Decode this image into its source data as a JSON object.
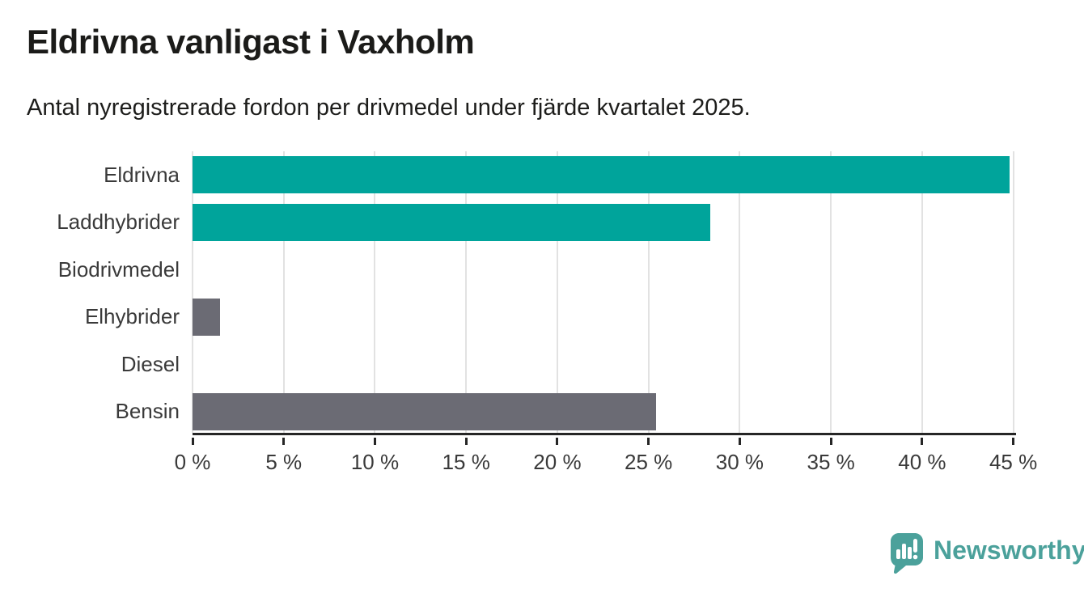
{
  "chart_data": {
    "type": "bar",
    "orientation": "horizontal",
    "title": "Eldrivna vanligast i Vaxholm",
    "subtitle": "Antal nyregistrerade fordon per drivmedel under fjärde kvartalet 2025.",
    "categories": [
      "Eldrivna",
      "Laddhybrider",
      "Biodrivmedel",
      "Elhybrider",
      "Diesel",
      "Bensin"
    ],
    "values": [
      44.8,
      28.4,
      0,
      1.5,
      0,
      25.4
    ],
    "unit": "%",
    "bar_colors": [
      "#00a49b",
      "#00a49b",
      "#00a49b",
      "#6b6b74",
      "#6b6b74",
      "#6b6b74"
    ],
    "xlim": [
      0,
      45.15
    ],
    "x_ticks": [
      0,
      5,
      10,
      15,
      20,
      25,
      30,
      35,
      40,
      45
    ],
    "x_tick_labels": [
      "0 %",
      "5 %",
      "10 %",
      "15 %",
      "20 %",
      "25 %",
      "30 %",
      "35 %",
      "40 %",
      "45 %"
    ],
    "xlabel": "",
    "ylabel": "",
    "grid": "vertical",
    "legend": "none",
    "colors": {
      "accent_teal": "#00a49b",
      "neutral_gray": "#6b6b74",
      "gridline": "#e2e2e2",
      "axis": "#262626",
      "text": "#1c1c1c"
    }
  },
  "branding": {
    "logo_text": "Newsworthy",
    "logo_icon": "bar-chart-speech-bubble",
    "logo_color": "#4ba19b"
  }
}
